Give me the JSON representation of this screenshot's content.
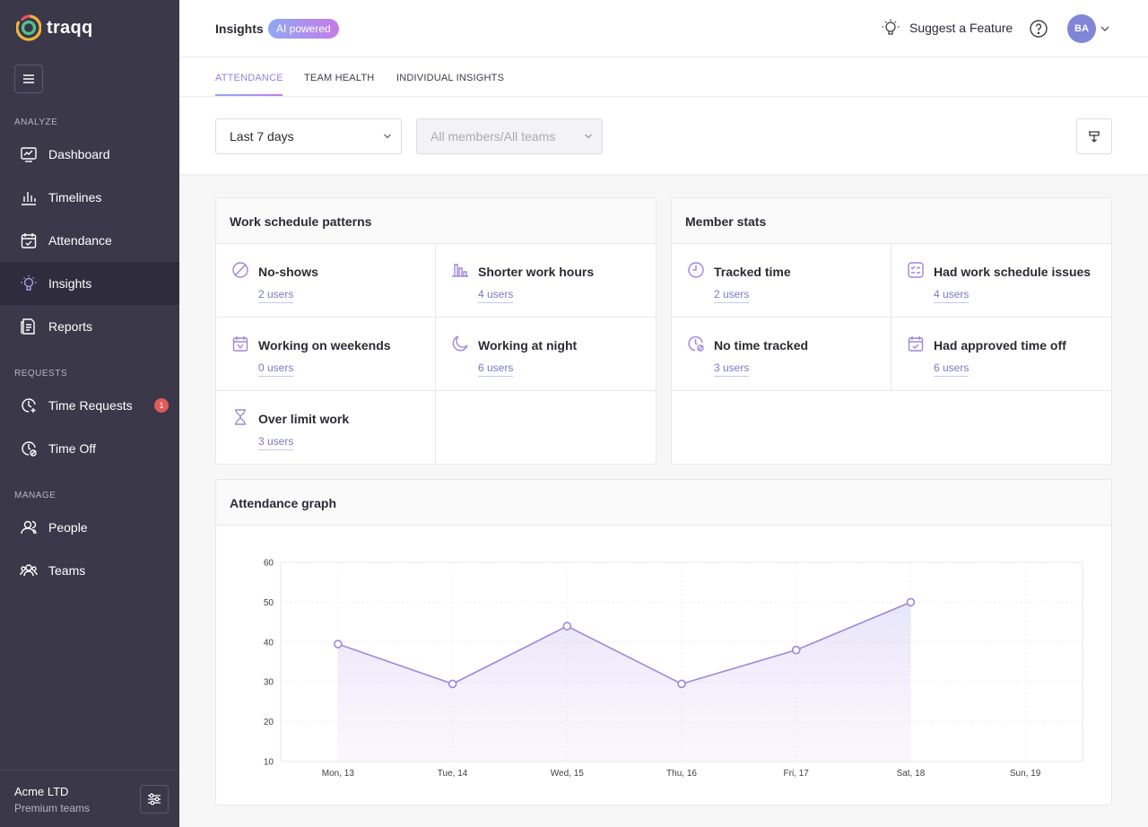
{
  "app": {
    "name": "traqq"
  },
  "sidebar": {
    "sections": {
      "analyze": "ANALYZE",
      "requests": "REQUESTS",
      "manage": "MANAGE"
    },
    "items": [
      {
        "label": "Dashboard"
      },
      {
        "label": "Timelines"
      },
      {
        "label": "Attendance"
      },
      {
        "label": "Insights"
      },
      {
        "label": "Reports"
      },
      {
        "label": "Time Requests",
        "badge": "1"
      },
      {
        "label": "Time Off"
      },
      {
        "label": "People"
      },
      {
        "label": "Teams"
      }
    ],
    "footer": {
      "org": "Acme LTD",
      "plan": "Premium teams"
    }
  },
  "header": {
    "title": "Insights",
    "ai_badge": "AI powered",
    "suggest": "Suggest a Feature",
    "avatar": "BA"
  },
  "tabs": [
    {
      "label": "ATTENDANCE"
    },
    {
      "label": "TEAM HEALTH"
    },
    {
      "label": "INDIVIDUAL INSIGHTS"
    }
  ],
  "filters": {
    "period": "Last 7 days",
    "members": "All members/All teams"
  },
  "work_patterns": {
    "title": "Work schedule patterns",
    "items": [
      {
        "label": "No-shows",
        "value": "2 users"
      },
      {
        "label": "Shorter work hours",
        "value": "4 users"
      },
      {
        "label": "Working on weekends",
        "value": "0 users"
      },
      {
        "label": "Working at night",
        "value": "6 users"
      },
      {
        "label": "Over limit work",
        "value": "3 users"
      }
    ]
  },
  "member_stats": {
    "title": "Member stats",
    "items": [
      {
        "label": "Tracked time",
        "value": "2 users"
      },
      {
        "label": "Had work schedule issues",
        "value": "4 users"
      },
      {
        "label": "No time tracked",
        "value": "3 users"
      },
      {
        "label": "Had approved time off",
        "value": "6 users"
      }
    ]
  },
  "graph": {
    "title": "Attendance graph"
  },
  "colors": {
    "sidebar": "#3a3849",
    "accent": "#8a87e0",
    "line": "#9e86dc"
  },
  "chart_data": {
    "type": "area",
    "categories": [
      "Mon, 13",
      "Tue, 14",
      "Wed, 15",
      "Thu, 16",
      "Fri, 17",
      "Sat, 18",
      "Sun, 19"
    ],
    "values": [
      39.5,
      29.5,
      44,
      29.5,
      38,
      50,
      null
    ],
    "yticks": [
      10,
      20,
      30,
      40,
      50,
      60
    ],
    "ylim": [
      10,
      60
    ]
  }
}
